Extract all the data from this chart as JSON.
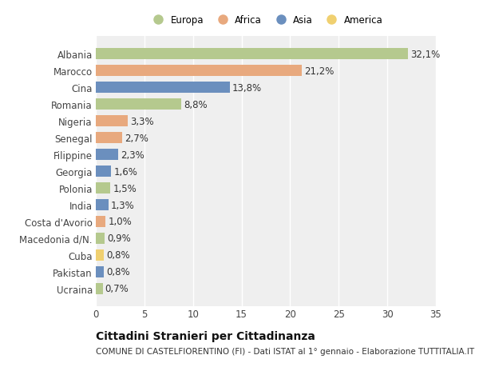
{
  "countries": [
    "Albania",
    "Marocco",
    "Cina",
    "Romania",
    "Nigeria",
    "Senegal",
    "Filippine",
    "Georgia",
    "Polonia",
    "India",
    "Costa d'Avorio",
    "Macedonia d/N.",
    "Cuba",
    "Pakistan",
    "Ucraina"
  ],
  "values": [
    32.1,
    21.2,
    13.8,
    8.8,
    3.3,
    2.7,
    2.3,
    1.6,
    1.5,
    1.3,
    1.0,
    0.9,
    0.8,
    0.8,
    0.7
  ],
  "labels": [
    "32,1%",
    "21,2%",
    "13,8%",
    "8,8%",
    "3,3%",
    "2,7%",
    "2,3%",
    "1,6%",
    "1,5%",
    "1,3%",
    "1,0%",
    "0,9%",
    "0,8%",
    "0,8%",
    "0,7%"
  ],
  "regions": [
    "Europa",
    "Africa",
    "Asia",
    "Europa",
    "Africa",
    "Africa",
    "Asia",
    "Asia",
    "Europa",
    "Asia",
    "Africa",
    "Europa",
    "America",
    "Asia",
    "Europa"
  ],
  "region_colors": {
    "Europa": "#b5c98e",
    "Africa": "#e8a97e",
    "Asia": "#6b8fbe",
    "America": "#f0d070"
  },
  "legend_order": [
    "Europa",
    "Africa",
    "Asia",
    "America"
  ],
  "title": "Cittadini Stranieri per Cittadinanza",
  "subtitle": "COMUNE DI CASTELFIORENTINO (FI) - Dati ISTAT al 1° gennaio - Elaborazione TUTTITALIA.IT",
  "xlim": [
    0,
    35
  ],
  "xticks": [
    0,
    5,
    10,
    15,
    20,
    25,
    30,
    35
  ],
  "background_color": "#ffffff",
  "plot_background": "#efefef",
  "grid_color": "#ffffff",
  "bar_height": 0.65,
  "label_fontsize": 8.5,
  "tick_fontsize": 8.5,
  "title_fontsize": 10,
  "subtitle_fontsize": 7.5
}
